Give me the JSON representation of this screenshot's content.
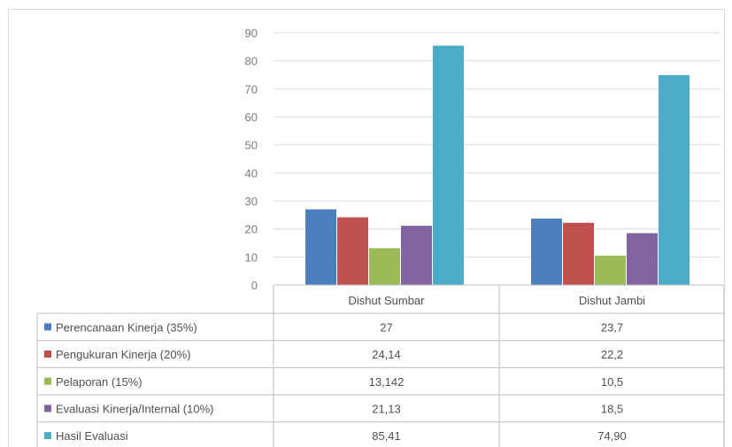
{
  "chart_data": {
    "type": "bar",
    "categories": [
      "Dishut Sumbar",
      "Dishut Jambi"
    ],
    "series": [
      {
        "name": "Perencanaan Kinerja (35%)",
        "values": [
          27,
          23.7
        ],
        "labels": [
          "27",
          "23,7"
        ],
        "color": "#4a7ebf"
      },
      {
        "name": "Pengukuran Kinerja (20%)",
        "values": [
          24.14,
          22.2
        ],
        "labels": [
          "24,14",
          "22,2"
        ],
        "color": "#c0504d"
      },
      {
        "name": "Pelaporan (15%)",
        "values": [
          13.142,
          10.5
        ],
        "labels": [
          "13,142",
          "10,5"
        ],
        "color": "#9bbb59"
      },
      {
        "name": "Evaluasi Kinerja/Internal (10%)",
        "values": [
          21.13,
          18.5
        ],
        "labels": [
          "21,13",
          "18,5"
        ],
        "color": "#8064a2"
      },
      {
        "name": "Hasil Evaluasi",
        "values": [
          85.41,
          74.9
        ],
        "labels": [
          "85,41",
          "74,90"
        ],
        "color": "#4bacc6"
      }
    ],
    "yticks": [
      "0",
      "10",
      "20",
      "30",
      "40",
      "50",
      "60",
      "70",
      "80",
      "90"
    ],
    "ylim": [
      0,
      90
    ],
    "grid": true,
    "legend": "data-table-left"
  }
}
